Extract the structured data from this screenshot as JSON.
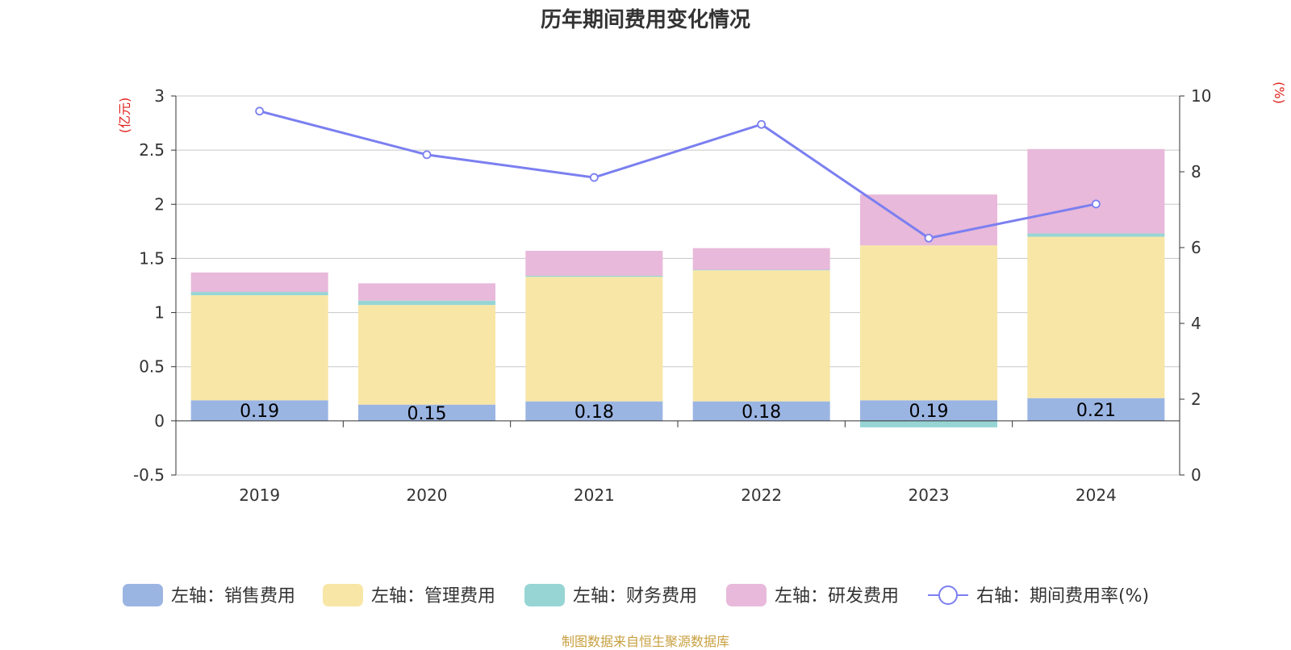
{
  "chart_data": {
    "type": "bar",
    "title": "历年期间费用变化情况",
    "categories": [
      "2019",
      "2020",
      "2021",
      "2022",
      "2023",
      "2024"
    ],
    "series": [
      {
        "name": "左轴：销售费用",
        "axis": "left",
        "color": "#9bb5e3",
        "values": [
          0.19,
          0.15,
          0.18,
          0.18,
          0.19,
          0.21
        ],
        "labels": [
          "0.19",
          "0.15",
          "0.18",
          "0.18",
          "0.19",
          "0.21"
        ]
      },
      {
        "name": "左轴：管理费用",
        "axis": "left",
        "color": "#f8e6a6",
        "values": [
          0.97,
          0.92,
          1.15,
          1.21,
          1.43,
          1.49
        ]
      },
      {
        "name": "左轴：财务费用",
        "axis": "left",
        "color": "#96d5d4",
        "values": [
          0.03,
          0.04,
          0.01,
          0.005,
          -0.06,
          0.03
        ]
      },
      {
        "name": "左轴：研发费用",
        "axis": "left",
        "color": "#e8b9da",
        "values": [
          0.18,
          0.16,
          0.23,
          0.2,
          0.47,
          0.78
        ]
      },
      {
        "name": "右轴：期间费用率(%)",
        "axis": "right",
        "type": "line",
        "color": "#7b7ff0",
        "values": [
          9.6,
          8.45,
          7.85,
          9.25,
          6.25,
          7.15
        ]
      }
    ],
    "left_axis": {
      "unit": "(亿元)",
      "min": -0.5,
      "max": 3,
      "ticks": [
        "-0.5",
        "0",
        "0.5",
        "1",
        "1.5",
        "2",
        "2.5",
        "3"
      ]
    },
    "right_axis": {
      "unit": "(%)",
      "min": 0,
      "max": 10,
      "ticks": [
        "0",
        "2",
        "4",
        "6",
        "8",
        "10"
      ]
    },
    "legend_position": "bottom"
  },
  "source_note": "制图数据来自恒生聚源数据库"
}
